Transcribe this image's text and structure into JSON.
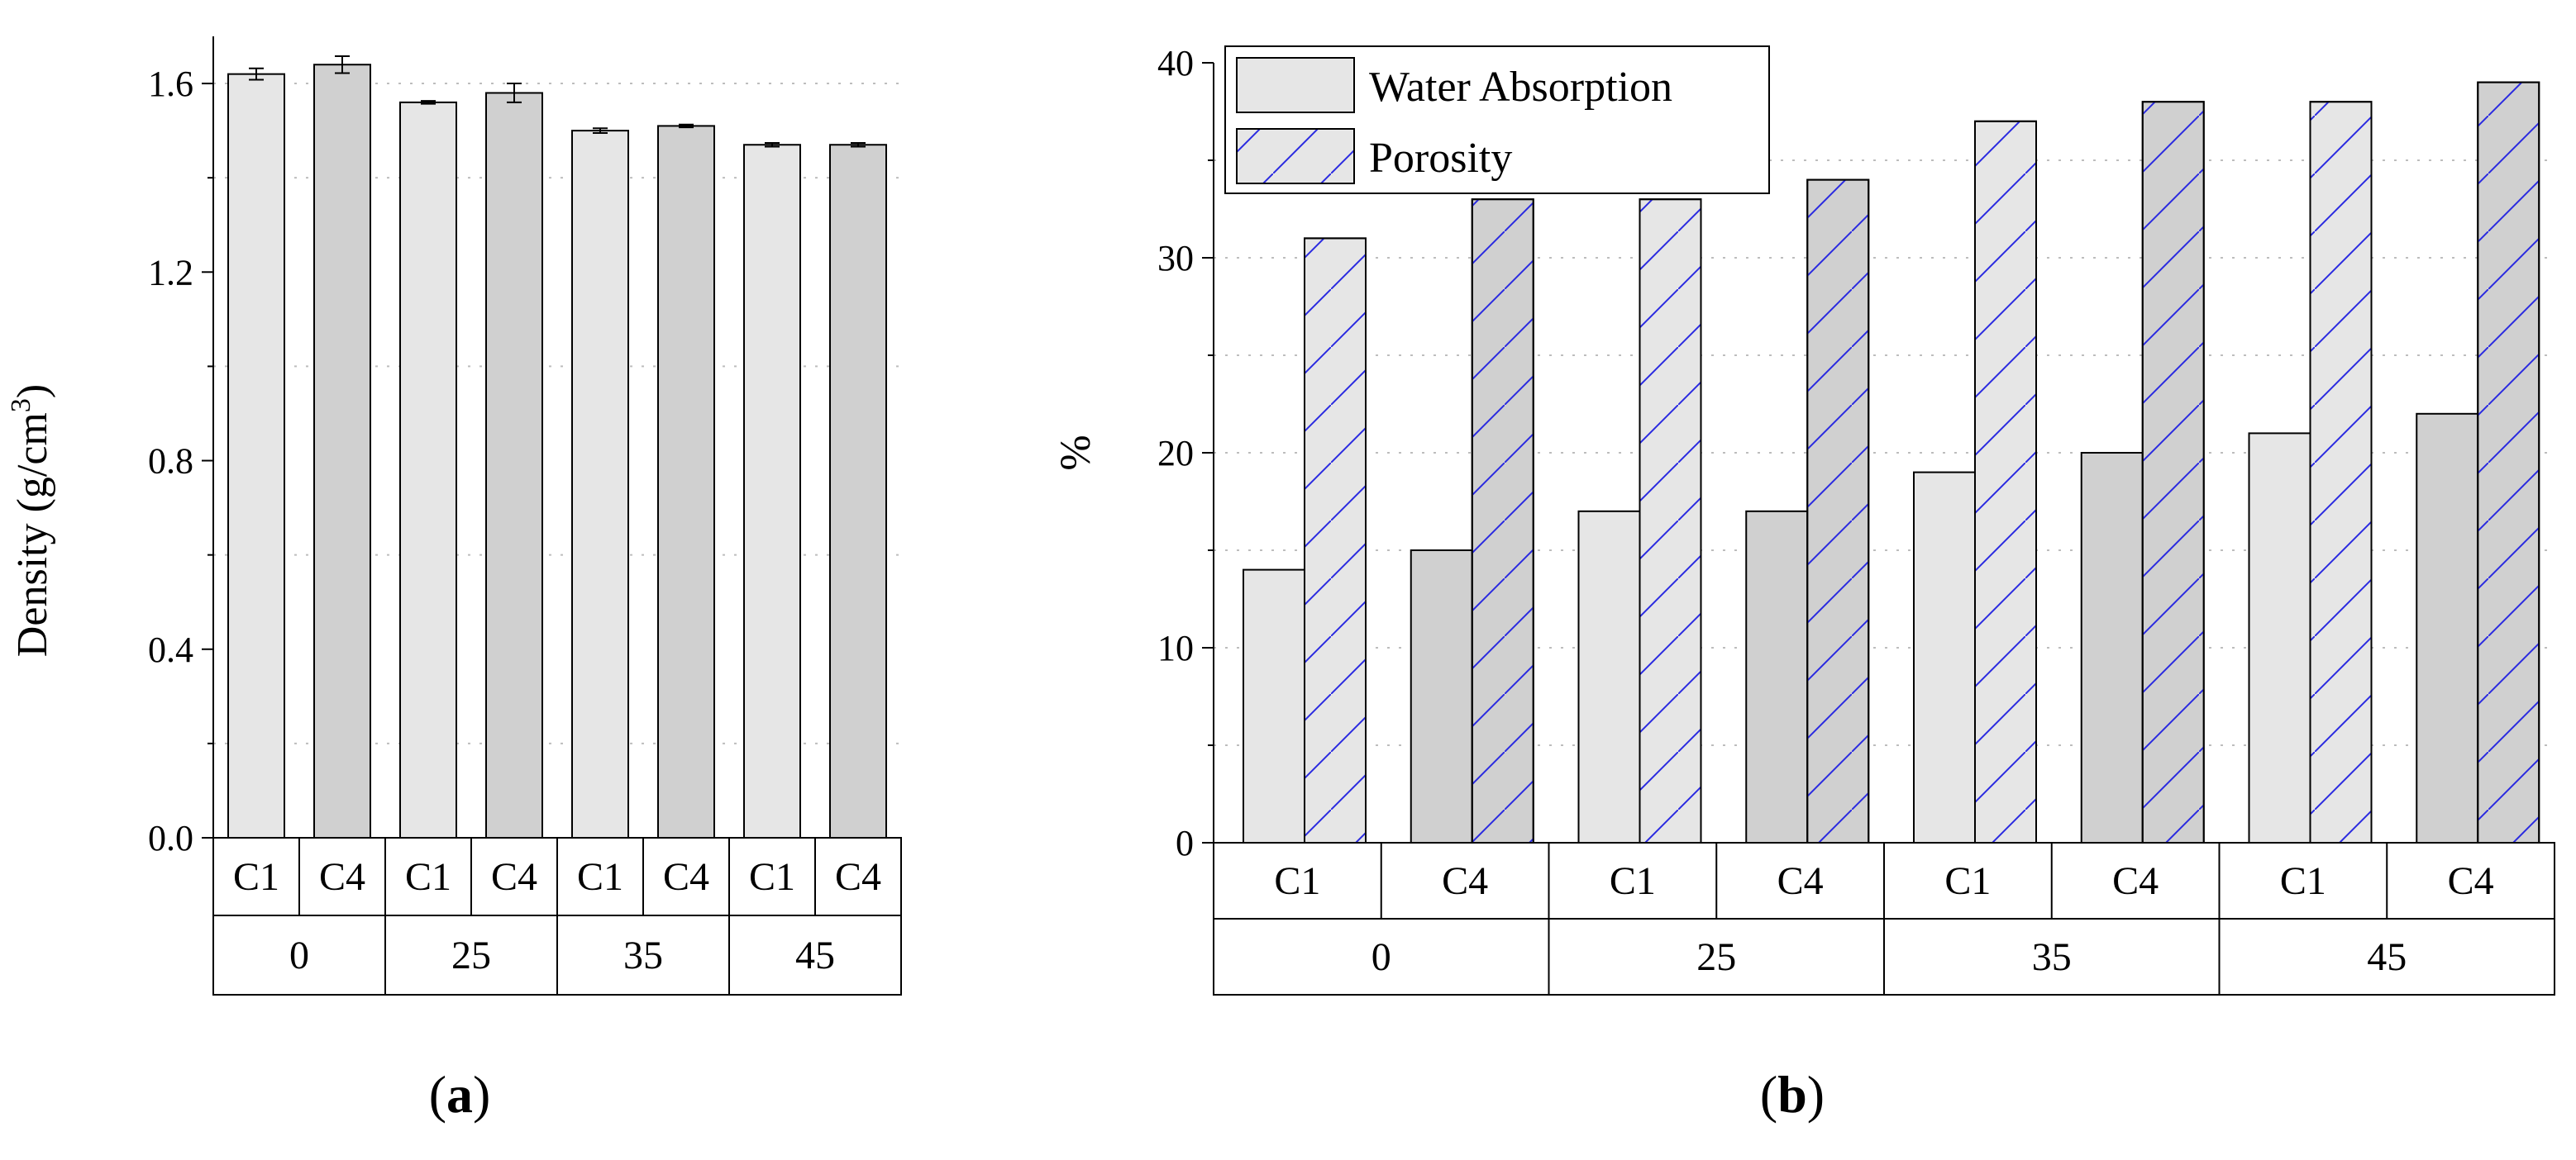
{
  "colors": {
    "c1_fill": "#e6e6e6",
    "c4_fill": "#d0d0d0",
    "hatch": "#2a2ae0",
    "grid": "#bdbdbd",
    "stroke": "#000000"
  },
  "panel_labels": {
    "a": "a",
    "b": "b"
  },
  "chart_data": [
    {
      "id": "a",
      "type": "bar",
      "title": "",
      "ylabel_main": "Density (g/cm",
      "ylabel_sup": "3",
      "ylabel_tail": ")",
      "ylim": [
        0,
        1.7
      ],
      "yticks": [
        0.0,
        0.4,
        0.8,
        1.2,
        1.6
      ],
      "ytick_labels": [
        "0.0",
        "0.4",
        "0.8",
        "1.2",
        "1.6"
      ],
      "minor_gridlines": [
        0.2,
        0.6,
        1.0,
        1.4
      ],
      "major_gridline": 1.6,
      "groups": [
        "0",
        "25",
        "35",
        "45"
      ],
      "subcategories": [
        "C1",
        "C4"
      ],
      "values": [
        {
          "group": "0",
          "sub": "C1",
          "value": 1.62,
          "err": 0.012
        },
        {
          "group": "0",
          "sub": "C4",
          "value": 1.64,
          "err": 0.018
        },
        {
          "group": "25",
          "sub": "C1",
          "value": 1.56,
          "err": 0.003
        },
        {
          "group": "25",
          "sub": "C4",
          "value": 1.58,
          "err": 0.02
        },
        {
          "group": "35",
          "sub": "C1",
          "value": 1.5,
          "err": 0.005
        },
        {
          "group": "35",
          "sub": "C4",
          "value": 1.51,
          "err": 0.003
        },
        {
          "group": "45",
          "sub": "C1",
          "value": 1.47,
          "err": 0.004
        },
        {
          "group": "45",
          "sub": "C4",
          "value": 1.47,
          "err": 0.004
        }
      ]
    },
    {
      "id": "b",
      "type": "bar",
      "title": "",
      "ylabel": "%",
      "ylim": [
        0,
        40
      ],
      "yticks": [
        0,
        10,
        20,
        30,
        40
      ],
      "ytick_labels": [
        "0",
        "10",
        "20",
        "30",
        "40"
      ],
      "minor_gridlines": [
        5,
        15,
        25,
        35
      ],
      "groups": [
        "0",
        "25",
        "35",
        "45"
      ],
      "subcategories": [
        "C1",
        "C4"
      ],
      "legend": {
        "position": "top-left",
        "entries": [
          "Water Absorption",
          "Porosity"
        ]
      },
      "series": [
        {
          "name": "Water Absorption",
          "values": [
            14,
            15,
            17,
            17,
            19,
            20,
            21,
            22
          ]
        },
        {
          "name": "Porosity",
          "values": [
            31,
            33,
            33,
            34,
            37,
            38,
            38,
            39
          ]
        }
      ]
    }
  ]
}
